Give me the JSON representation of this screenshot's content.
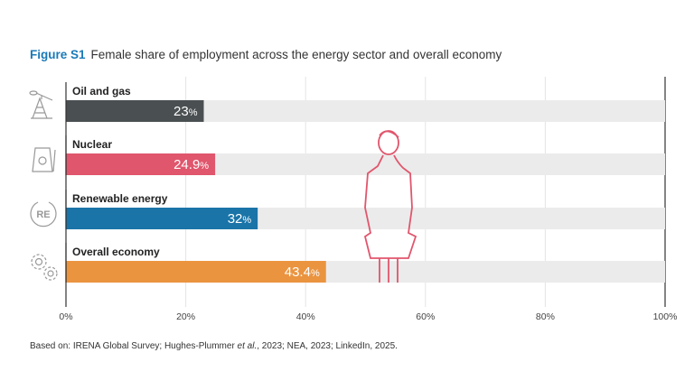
{
  "title": {
    "figure_label": "Figure S1",
    "text": "Female share of employment across the energy sector and overall economy"
  },
  "source": {
    "prefix": "Based on: IRENA Global Survey; Hughes-Plummer ",
    "italic": "et al.",
    "suffix": ", 2023; NEA, 2023; LinkedIn, 2025."
  },
  "chart_data": {
    "type": "bar",
    "orientation": "horizontal",
    "categories": [
      "Oil and gas",
      "Nuclear",
      "Renewable energy",
      "Overall economy"
    ],
    "values": [
      23,
      24.9,
      32,
      43.4
    ],
    "value_labels": [
      "23",
      "24.9",
      "32",
      "43.4"
    ],
    "unit": "%",
    "colors": [
      "#4a4f51",
      "#e0566d",
      "#1a74a8",
      "#ea9440"
    ],
    "icons": [
      "oil-pump-icon",
      "nuclear-plant-icon",
      "renewable-energy-icon",
      "gears-icon"
    ],
    "background_bar_color": "#ebebeb",
    "xlim": [
      0,
      100
    ],
    "xticks": [
      "0%",
      "20%",
      "40%",
      "60%",
      "80%",
      "100%"
    ],
    "grid": true,
    "decoration": "woman-figure-icon"
  }
}
